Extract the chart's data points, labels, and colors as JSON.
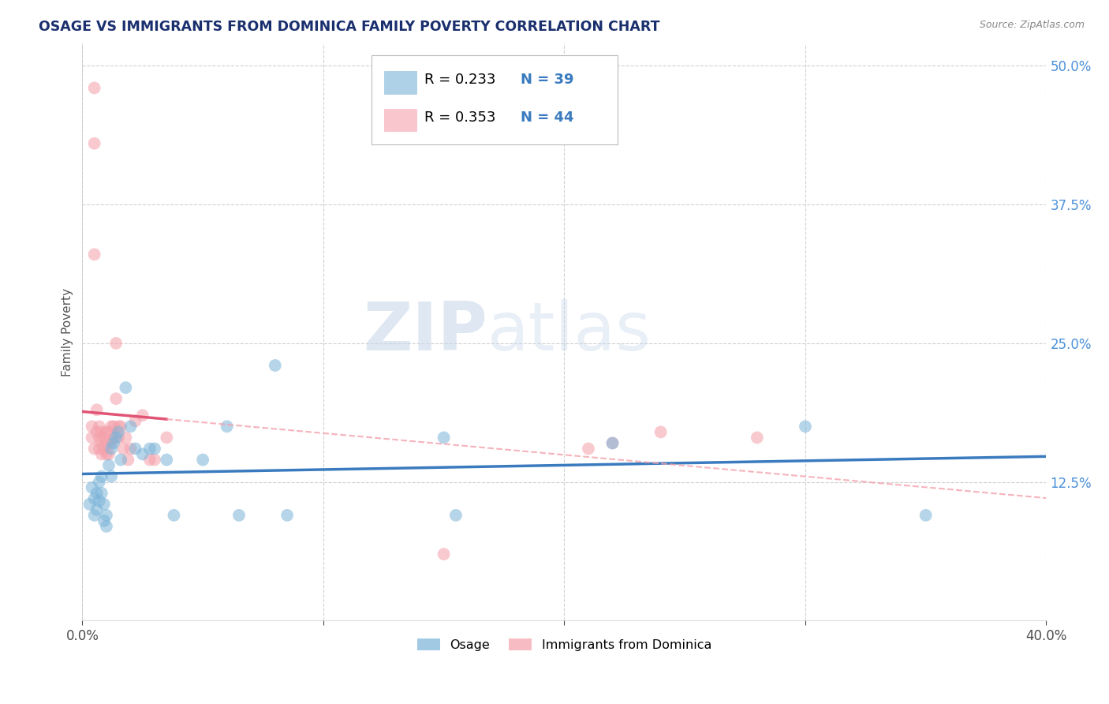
{
  "title": "OSAGE VS IMMIGRANTS FROM DOMINICA FAMILY POVERTY CORRELATION CHART",
  "source": "Source: ZipAtlas.com",
  "xlabel": "",
  "ylabel": "Family Poverty",
  "xlim": [
    0.0,
    0.4
  ],
  "ylim": [
    0.0,
    0.52
  ],
  "xticks": [
    0.0,
    0.1,
    0.2,
    0.3,
    0.4
  ],
  "xticklabels": [
    "0.0%",
    "",
    "",
    "",
    "40.0%"
  ],
  "yticks": [
    0.0,
    0.125,
    0.25,
    0.375,
    0.5
  ],
  "yticklabels": [
    "",
    "12.5%",
    "25.0%",
    "37.5%",
    "50.0%"
  ],
  "watermark_zip": "ZIP",
  "watermark_atlas": "atlas",
  "legend_r1": "R = 0.233",
  "legend_n1": "N = 39",
  "legend_r2": "R = 0.353",
  "legend_n2": "N = 44",
  "legend_label1": "Osage",
  "legend_label2": "Immigrants from Dominica",
  "blue_color": "#7ab3d8",
  "pink_color": "#f4a0aa",
  "blue_line_color": "#3a7bbf",
  "pink_line_color": "#e05575",
  "grid_color": "#cccccc",
  "title_color": "#1a2f6e",
  "osage_x": [
    0.003,
    0.004,
    0.005,
    0.005,
    0.006,
    0.006,
    0.007,
    0.007,
    0.008,
    0.008,
    0.009,
    0.009,
    0.01,
    0.01,
    0.011,
    0.012,
    0.012,
    0.013,
    0.014,
    0.015,
    0.016,
    0.018,
    0.02,
    0.022,
    0.025,
    0.028,
    0.03,
    0.035,
    0.038,
    0.05,
    0.06,
    0.065,
    0.08,
    0.085,
    0.15,
    0.155,
    0.22,
    0.3,
    0.35
  ],
  "osage_y": [
    0.105,
    0.12,
    0.11,
    0.095,
    0.115,
    0.1,
    0.125,
    0.108,
    0.13,
    0.115,
    0.105,
    0.09,
    0.085,
    0.095,
    0.14,
    0.155,
    0.13,
    0.16,
    0.165,
    0.17,
    0.145,
    0.21,
    0.175,
    0.155,
    0.15,
    0.155,
    0.155,
    0.145,
    0.095,
    0.145,
    0.175,
    0.095,
    0.23,
    0.095,
    0.165,
    0.095,
    0.16,
    0.175,
    0.095
  ],
  "dominica_x": [
    0.004,
    0.004,
    0.005,
    0.006,
    0.006,
    0.007,
    0.007,
    0.007,
    0.008,
    0.008,
    0.008,
    0.009,
    0.009,
    0.01,
    0.01,
    0.01,
    0.011,
    0.011,
    0.012,
    0.012,
    0.013,
    0.013,
    0.014,
    0.014,
    0.015,
    0.015,
    0.016,
    0.017,
    0.018,
    0.019,
    0.02,
    0.022,
    0.025,
    0.028,
    0.03,
    0.035,
    0.005,
    0.005,
    0.005,
    0.15,
    0.21,
    0.22,
    0.24,
    0.28
  ],
  "dominica_y": [
    0.175,
    0.165,
    0.155,
    0.17,
    0.19,
    0.175,
    0.165,
    0.155,
    0.17,
    0.16,
    0.15,
    0.155,
    0.165,
    0.17,
    0.15,
    0.16,
    0.17,
    0.15,
    0.175,
    0.16,
    0.165,
    0.175,
    0.25,
    0.2,
    0.175,
    0.165,
    0.175,
    0.155,
    0.165,
    0.145,
    0.155,
    0.18,
    0.185,
    0.145,
    0.145,
    0.165,
    0.48,
    0.43,
    0.33,
    0.06,
    0.155,
    0.16,
    0.17,
    0.165
  ]
}
